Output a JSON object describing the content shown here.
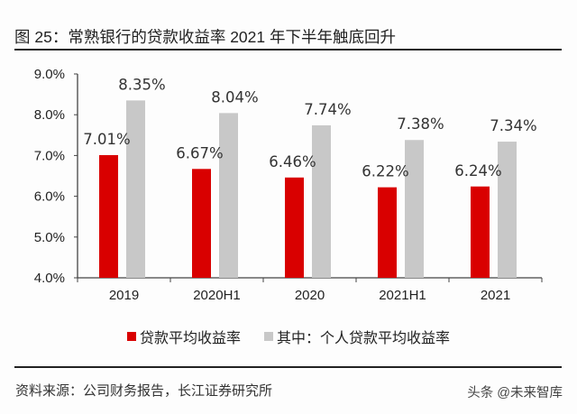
{
  "title": "图 25：常熟银行的贷款收益率 2021 年下半年触底回升",
  "source": "资料来源：公司财务报告，长江证券研究所",
  "watermark": "头条 @未来智库",
  "colors": {
    "series1": "#d90000",
    "series2": "#c8c8c8",
    "axis": "#444444"
  },
  "chart_data": {
    "type": "bar",
    "title": "常熟银行的贷款收益率 2021 年下半年触底回升",
    "xlabel": "",
    "ylabel": "",
    "categories": [
      "2019",
      "2020H1",
      "2020",
      "2021H1",
      "2021"
    ],
    "series": [
      {
        "name": "贷款平均收益率",
        "values": [
          7.01,
          6.67,
          6.46,
          6.22,
          6.24
        ],
        "labels": [
          "7.01%",
          "6.67%",
          "6.46%",
          "6.22%",
          "6.24%"
        ]
      },
      {
        "name": "其中：个人贷款平均收益率",
        "values": [
          8.35,
          8.04,
          7.74,
          7.38,
          7.34
        ],
        "labels": [
          "8.35%",
          "8.04%",
          "7.74%",
          "7.38%",
          "7.34%"
        ]
      }
    ],
    "ylim": [
      4.0,
      9.0
    ],
    "yticks": [
      "4.0%",
      "5.0%",
      "6.0%",
      "7.0%",
      "8.0%",
      "9.0%"
    ],
    "ytick_values": [
      4.0,
      5.0,
      6.0,
      7.0,
      8.0,
      9.0
    ],
    "grid": false,
    "legend_position": "bottom"
  }
}
